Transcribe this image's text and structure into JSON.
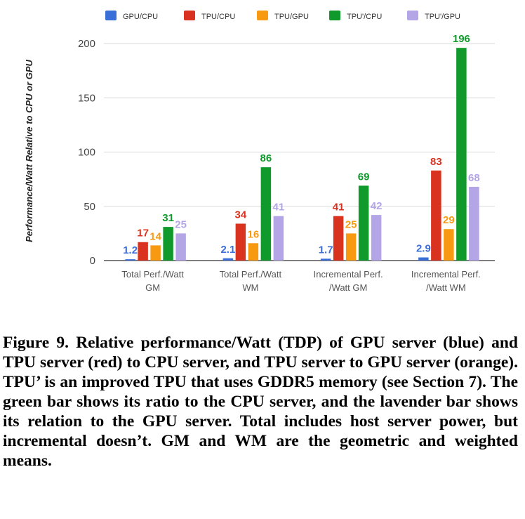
{
  "chart_data": {
    "type": "bar",
    "title": "",
    "xlabel": "",
    "ylabel": "Performance/Watt Relative to CPU or GPU",
    "ylim": [
      0,
      200
    ],
    "yticks": [
      0,
      50,
      100,
      150,
      200
    ],
    "grid": true,
    "legend_position": "top",
    "categories": [
      [
        "Total Perf./Watt",
        "GM"
      ],
      [
        "Total Perf./Watt",
        "WM"
      ],
      [
        "Incremental Perf.",
        "/Watt GM"
      ],
      [
        "Incremental Perf.",
        "/Watt WM"
      ]
    ],
    "series": [
      {
        "name": "GPU/CPU",
        "color": "#3b6fd8",
        "values": [
          1.2,
          2.1,
          1.7,
          2.9
        ],
        "labels": [
          "1.2",
          "2.1",
          "1.7",
          "2.9"
        ]
      },
      {
        "name": "TPU/CPU",
        "color": "#d9321f",
        "values": [
          17,
          34,
          41,
          83
        ],
        "labels": [
          "17",
          "34",
          "41",
          "83"
        ]
      },
      {
        "name": "TPU/GPU",
        "color": "#f79a12",
        "values": [
          14,
          16,
          25,
          29
        ],
        "labels": [
          "14",
          "16",
          "25",
          "29"
        ]
      },
      {
        "name": "TPU'/CPU",
        "color": "#109a2b",
        "values": [
          31,
          86,
          69,
          196
        ],
        "labels": [
          "31",
          "86",
          "69",
          "196"
        ]
      },
      {
        "name": "TPU'/GPU",
        "color": "#b3a5e6",
        "values": [
          25,
          41,
          42,
          68
        ],
        "labels": [
          "25",
          "41",
          "42",
          "68"
        ]
      }
    ]
  },
  "caption": {
    "text": "Figure 9. Relative performance/Watt (TDP) of GPU server (blue) and TPU server (red) to CPU server, and TPU server to GPU server (orange). TPU’ is an improved TPU that uses GDDR5 memory (see Section 7). The green bar shows its ratio to the CPU server, and the lavender bar shows its relation to the GPU server. Total includes host server power, but incremental doesn’t. GM and WM are the geometric and weighted means."
  }
}
